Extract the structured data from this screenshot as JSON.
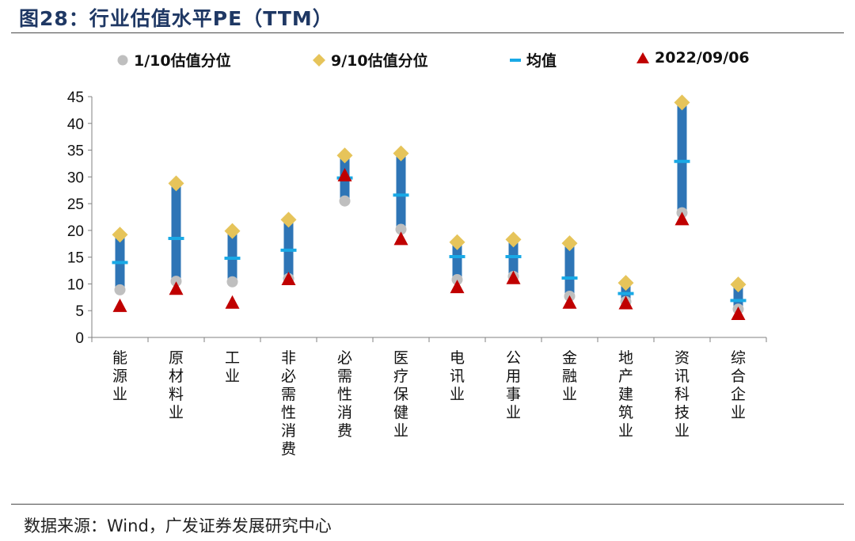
{
  "header": {
    "title": "图28：行业估值水平PE（TTM）"
  },
  "footer": {
    "source": "数据来源：Wind，广发证券发展研究中心"
  },
  "colors": {
    "bar": "#2e75b6",
    "p10": "#bfbfbf",
    "p90": "#e6c45a",
    "mean": "#19a9e6",
    "current": "#c00000",
    "title": "#1f3864"
  },
  "chart_data": {
    "type": "bar",
    "title": "",
    "xlabel": "",
    "ylabel": "",
    "ylim": [
      0,
      45
    ],
    "yticks": [
      0,
      5,
      10,
      15,
      20,
      25,
      30,
      35,
      40,
      45
    ],
    "grid": false,
    "legend_position": "top",
    "categories": [
      "能源业",
      "原材料业",
      "工业",
      "非必需性消费",
      "必需性消费",
      "医疗保健业",
      "电讯业",
      "公用事业",
      "金融业",
      "地产建筑业",
      "资讯科技业",
      "综合企业"
    ],
    "series": [
      {
        "name": "1/10估值分位",
        "marker": "circle",
        "values": [
          8.9,
          10.5,
          10.4,
          11.0,
          25.5,
          20.2,
          10.8,
          11.4,
          7.7,
          6.7,
          23.3,
          5.3
        ]
      },
      {
        "name": "9/10估值分位",
        "marker": "diamond",
        "values": [
          19.2,
          28.8,
          19.9,
          22.0,
          34.0,
          34.4,
          17.8,
          18.3,
          17.6,
          10.2,
          43.9,
          9.9
        ]
      },
      {
        "name": "均值",
        "marker": "dash",
        "values": [
          14.0,
          18.5,
          14.8,
          16.3,
          29.8,
          26.6,
          15.1,
          15.1,
          11.1,
          8.2,
          32.9,
          6.9
        ]
      },
      {
        "name": "2022/09/06",
        "marker": "triangle",
        "values": [
          5.8,
          9.0,
          6.4,
          10.8,
          30.2,
          18.3,
          9.3,
          11.0,
          6.4,
          6.3,
          22.0,
          4.3
        ]
      }
    ]
  }
}
